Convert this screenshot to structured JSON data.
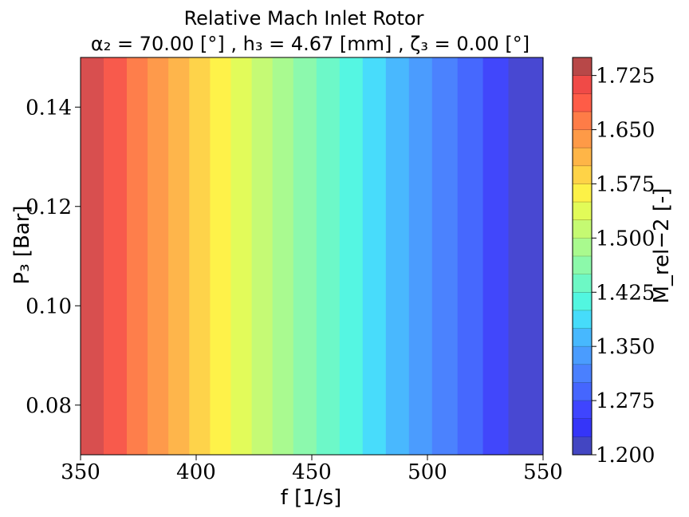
{
  "chart_data": {
    "type": "heatmap",
    "title": "Relative Mach Inlet Rotor",
    "subtitle": "α₂ = 70.00 [°] , h₃ = 4.67 [mm] , ζ₃ = 0.00 [°]",
    "xlabel": "f [1/s]",
    "ylabel": "P₃ [Bar]",
    "xlim": [
      350,
      550
    ],
    "ylim": [
      0.07,
      0.15
    ],
    "x_ticks": [
      "350",
      "400",
      "450",
      "500",
      "550"
    ],
    "y_ticks": [
      "0.08",
      "0.10",
      "0.12",
      "0.14"
    ],
    "colorbar": {
      "label": "M_rel−2 [-]",
      "ticks": [
        "1.200",
        "1.275",
        "1.350",
        "1.425",
        "1.500",
        "1.575",
        "1.650",
        "1.725"
      ],
      "range": [
        1.2,
        1.75
      ],
      "levels": [
        {
          "lo": 1.2,
          "hi": 1.225,
          "color": "#4346c2"
        },
        {
          "lo": 1.225,
          "hi": 1.25,
          "color": "#3535f8"
        },
        {
          "lo": 1.25,
          "hi": 1.275,
          "color": "#3f45fe"
        },
        {
          "lo": 1.275,
          "hi": 1.3,
          "color": "#4566fe"
        },
        {
          "lo": 1.3,
          "hi": 1.325,
          "color": "#4a80fe"
        },
        {
          "lo": 1.325,
          "hi": 1.35,
          "color": "#4a9cfe"
        },
        {
          "lo": 1.35,
          "hi": 1.375,
          "color": "#47b8fe"
        },
        {
          "lo": 1.375,
          "hi": 1.4,
          "color": "#46dcfa"
        },
        {
          "lo": 1.4,
          "hi": 1.425,
          "color": "#52f6e0"
        },
        {
          "lo": 1.425,
          "hi": 1.45,
          "color": "#6df8c5"
        },
        {
          "lo": 1.45,
          "hi": 1.475,
          "color": "#8cf9aa"
        },
        {
          "lo": 1.475,
          "hi": 1.5,
          "color": "#a9fa8e"
        },
        {
          "lo": 1.5,
          "hi": 1.525,
          "color": "#c5fa72"
        },
        {
          "lo": 1.525,
          "hi": 1.55,
          "color": "#e2fb58"
        },
        {
          "lo": 1.55,
          "hi": 1.575,
          "color": "#fdf147"
        },
        {
          "lo": 1.575,
          "hi": 1.6,
          "color": "#fed347"
        },
        {
          "lo": 1.6,
          "hi": 1.625,
          "color": "#feb547"
        },
        {
          "lo": 1.625,
          "hi": 1.65,
          "color": "#fe9a47"
        },
        {
          "lo": 1.65,
          "hi": 1.675,
          "color": "#fe7c47"
        },
        {
          "lo": 1.675,
          "hi": 1.7,
          "color": "#fe5c47"
        },
        {
          "lo": 1.7,
          "hi": 1.725,
          "color": "#f04a47"
        },
        {
          "lo": 1.725,
          "hi": 1.75,
          "color": "#b84848"
        }
      ]
    },
    "bands": [
      {
        "x0": 350,
        "x1": 360,
        "color": "#d84f4f"
      },
      {
        "x0": 360,
        "x1": 370,
        "color": "#f85a4c"
      },
      {
        "x0": 370,
        "x1": 379,
        "color": "#fe7e4b"
      },
      {
        "x0": 379,
        "x1": 388,
        "color": "#fe9a4b"
      },
      {
        "x0": 388,
        "x1": 397,
        "color": "#feb54b"
      },
      {
        "x0": 397,
        "x1": 406,
        "color": "#fed34a"
      },
      {
        "x0": 406,
        "x1": 415,
        "color": "#fef249"
      },
      {
        "x0": 415,
        "x1": 424,
        "color": "#e2fb5a"
      },
      {
        "x0": 424,
        "x1": 433,
        "color": "#c5fa75"
      },
      {
        "x0": 433,
        "x1": 442,
        "color": "#a9fa90"
      },
      {
        "x0": 442,
        "x1": 452,
        "color": "#8cf9ad"
      },
      {
        "x0": 452,
        "x1": 462,
        "color": "#6df8c8"
      },
      {
        "x0": 462,
        "x1": 472,
        "color": "#55f6e2"
      },
      {
        "x0": 472,
        "x1": 482,
        "color": "#48dcfb"
      },
      {
        "x0": 482,
        "x1": 492,
        "color": "#49b8fe"
      },
      {
        "x0": 492,
        "x1": 502,
        "color": "#4b9cfe"
      },
      {
        "x0": 502,
        "x1": 513,
        "color": "#4b82fe"
      },
      {
        "x0": 513,
        "x1": 524,
        "color": "#4668fe"
      },
      {
        "x0": 524,
        "x1": 535,
        "color": "#4147fb"
      },
      {
        "x0": 535,
        "x1": 550,
        "color": "#4848d2"
      }
    ]
  }
}
